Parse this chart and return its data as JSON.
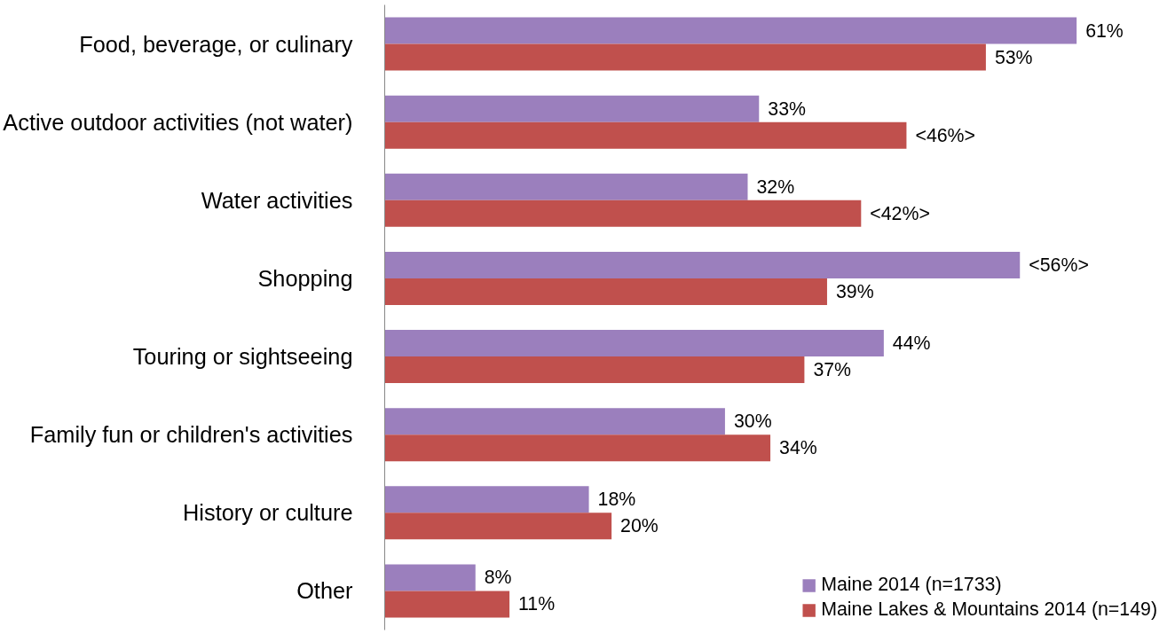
{
  "chart_data": {
    "type": "bar",
    "orientation": "horizontal",
    "categories": [
      "Food, beverage, or culinary",
      "Active outdoor activities (not water)",
      "Water activities",
      "Shopping",
      "Touring or sightseeing",
      "Family fun or children's activities",
      "History or culture",
      "Other"
    ],
    "series": [
      {
        "name": "Maine 2014 (n=1733)",
        "color": "#9b7fbd",
        "values": [
          61,
          33,
          32,
          56,
          44,
          30,
          18,
          8
        ],
        "value_labels": [
          "61%",
          "33%",
          "32%",
          "<56%>",
          "44%",
          "30%",
          "18%",
          "8%"
        ]
      },
      {
        "name": "Maine Lakes & Mountains 2014 (n=149)",
        "color": "#c0504d",
        "values": [
          53,
          46,
          42,
          39,
          37,
          34,
          20,
          11
        ],
        "value_labels": [
          "53%",
          "<46%>",
          "<42%>",
          "39%",
          "37%",
          "34%",
          "20%",
          "11%"
        ]
      }
    ],
    "grid": false,
    "legend": "bottom right"
  }
}
